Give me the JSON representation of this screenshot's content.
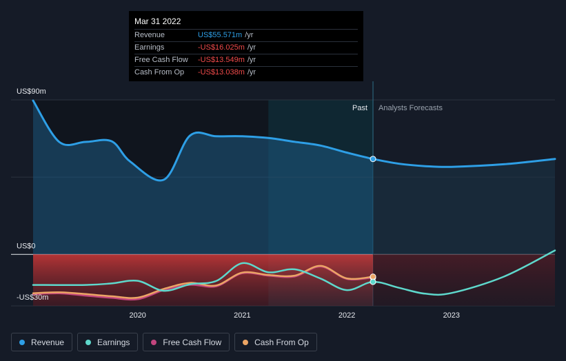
{
  "tooltip": {
    "date": "Mar 31 2022",
    "rows": [
      {
        "label": "Revenue",
        "value": "US$55.571m",
        "unit": "/yr",
        "color": "#2e9fe6"
      },
      {
        "label": "Earnings",
        "value": "-US$16.025m",
        "unit": "/yr",
        "color": "#f04a4a"
      },
      {
        "label": "Free Cash Flow",
        "value": "-US$13.549m",
        "unit": "/yr",
        "color": "#f04a4a"
      },
      {
        "label": "Cash From Op",
        "value": "-US$13.038m",
        "unit": "/yr",
        "color": "#f04a4a"
      }
    ]
  },
  "chart_data": {
    "type": "line",
    "title": "",
    "xlabel": "",
    "ylabel": "",
    "ylim": [
      -30,
      90
    ],
    "y_tick_labels": [
      {
        "value": 90,
        "label": "US$90m"
      },
      {
        "value": 0,
        "label": "US$0"
      },
      {
        "value": -30,
        "label": "-US$30m"
      }
    ],
    "x_tick_labels": [
      {
        "value": 2020,
        "label": "2020"
      },
      {
        "value": 2021,
        "label": "2021"
      },
      {
        "value": 2022,
        "label": "2022"
      },
      {
        "value": 2023,
        "label": "2023"
      }
    ],
    "xlim": [
      2019.0,
      2023.99
    ],
    "divider_x": 2022.25,
    "highlight_start_x": 2021.25,
    "past_label": "Past",
    "forecast_label": "Analysts Forecasts",
    "series": [
      {
        "name": "Revenue",
        "color": "#2e9fe6",
        "points": [
          [
            2019.0,
            89.6
          ],
          [
            2019.25,
            65.5
          ],
          [
            2019.5,
            65.5
          ],
          [
            2019.75,
            65.9
          ],
          [
            2019.93,
            54
          ],
          [
            2020.25,
            43.5
          ],
          [
            2020.5,
            69.2
          ],
          [
            2020.75,
            68.8
          ],
          [
            2021.0,
            68.8
          ],
          [
            2021.25,
            67.8
          ],
          [
            2021.5,
            65.6
          ],
          [
            2021.75,
            63.4
          ],
          [
            2022.0,
            59.3
          ],
          [
            2022.25,
            55.6
          ],
          [
            2022.5,
            52.8
          ],
          [
            2022.75,
            51.4
          ],
          [
            2023.0,
            51.0
          ],
          [
            2023.5,
            52.5
          ],
          [
            2023.99,
            55.6
          ]
        ]
      },
      {
        "name": "Earnings",
        "color": "#5ed8cc",
        "points": [
          [
            2019.0,
            -17.8
          ],
          [
            2019.5,
            -17.8
          ],
          [
            2019.75,
            -16.9
          ],
          [
            2020.0,
            -15.4
          ],
          [
            2020.25,
            -21.2
          ],
          [
            2020.5,
            -17.4
          ],
          [
            2020.75,
            -15.5
          ],
          [
            2021.0,
            -5.1
          ],
          [
            2021.25,
            -10.4
          ],
          [
            2021.5,
            -8.7
          ],
          [
            2021.75,
            -14.1
          ],
          [
            2022.0,
            -20.8
          ],
          [
            2022.25,
            -16.0
          ],
          [
            2022.5,
            -19.5
          ],
          [
            2022.75,
            -22.9
          ],
          [
            2023.0,
            -22.5
          ],
          [
            2023.5,
            -13.0
          ],
          [
            2023.99,
            2.3
          ]
        ]
      },
      {
        "name": "Free Cash Flow",
        "color": "#c2457e",
        "points": [
          [
            2019.0,
            -23.2
          ],
          [
            2019.25,
            -22.7
          ],
          [
            2019.5,
            -24.0
          ],
          [
            2019.75,
            -25.3
          ],
          [
            2020.0,
            -26.1
          ],
          [
            2020.25,
            -20.8
          ],
          [
            2020.5,
            -17.7
          ],
          [
            2020.75,
            -18.6
          ],
          [
            2021.0,
            -11.0
          ],
          [
            2021.25,
            -12.4
          ],
          [
            2021.5,
            -12.9
          ],
          [
            2021.75,
            -7.1
          ],
          [
            2022.0,
            -14.3
          ],
          [
            2022.25,
            -13.5
          ]
        ]
      },
      {
        "name": "Cash From Op",
        "color": "#eca565",
        "points": [
          [
            2019.0,
            -22.6
          ],
          [
            2019.25,
            -22.1
          ],
          [
            2019.5,
            -23.1
          ],
          [
            2019.75,
            -24.4
          ],
          [
            2020.0,
            -25.2
          ],
          [
            2020.25,
            -20.1
          ],
          [
            2020.5,
            -16.6
          ],
          [
            2020.75,
            -18.1
          ],
          [
            2021.0,
            -10.6
          ],
          [
            2021.25,
            -12.0
          ],
          [
            2021.5,
            -12.4
          ],
          [
            2021.75,
            -6.7
          ],
          [
            2022.0,
            -14.0
          ],
          [
            2022.25,
            -13.0
          ]
        ]
      }
    ]
  },
  "legend": [
    {
      "label": "Revenue",
      "color": "#2e9fe6"
    },
    {
      "label": "Earnings",
      "color": "#5ed8cc"
    },
    {
      "label": "Free Cash Flow",
      "color": "#c2457e"
    },
    {
      "label": "Cash From Op",
      "color": "#eca565"
    }
  ]
}
